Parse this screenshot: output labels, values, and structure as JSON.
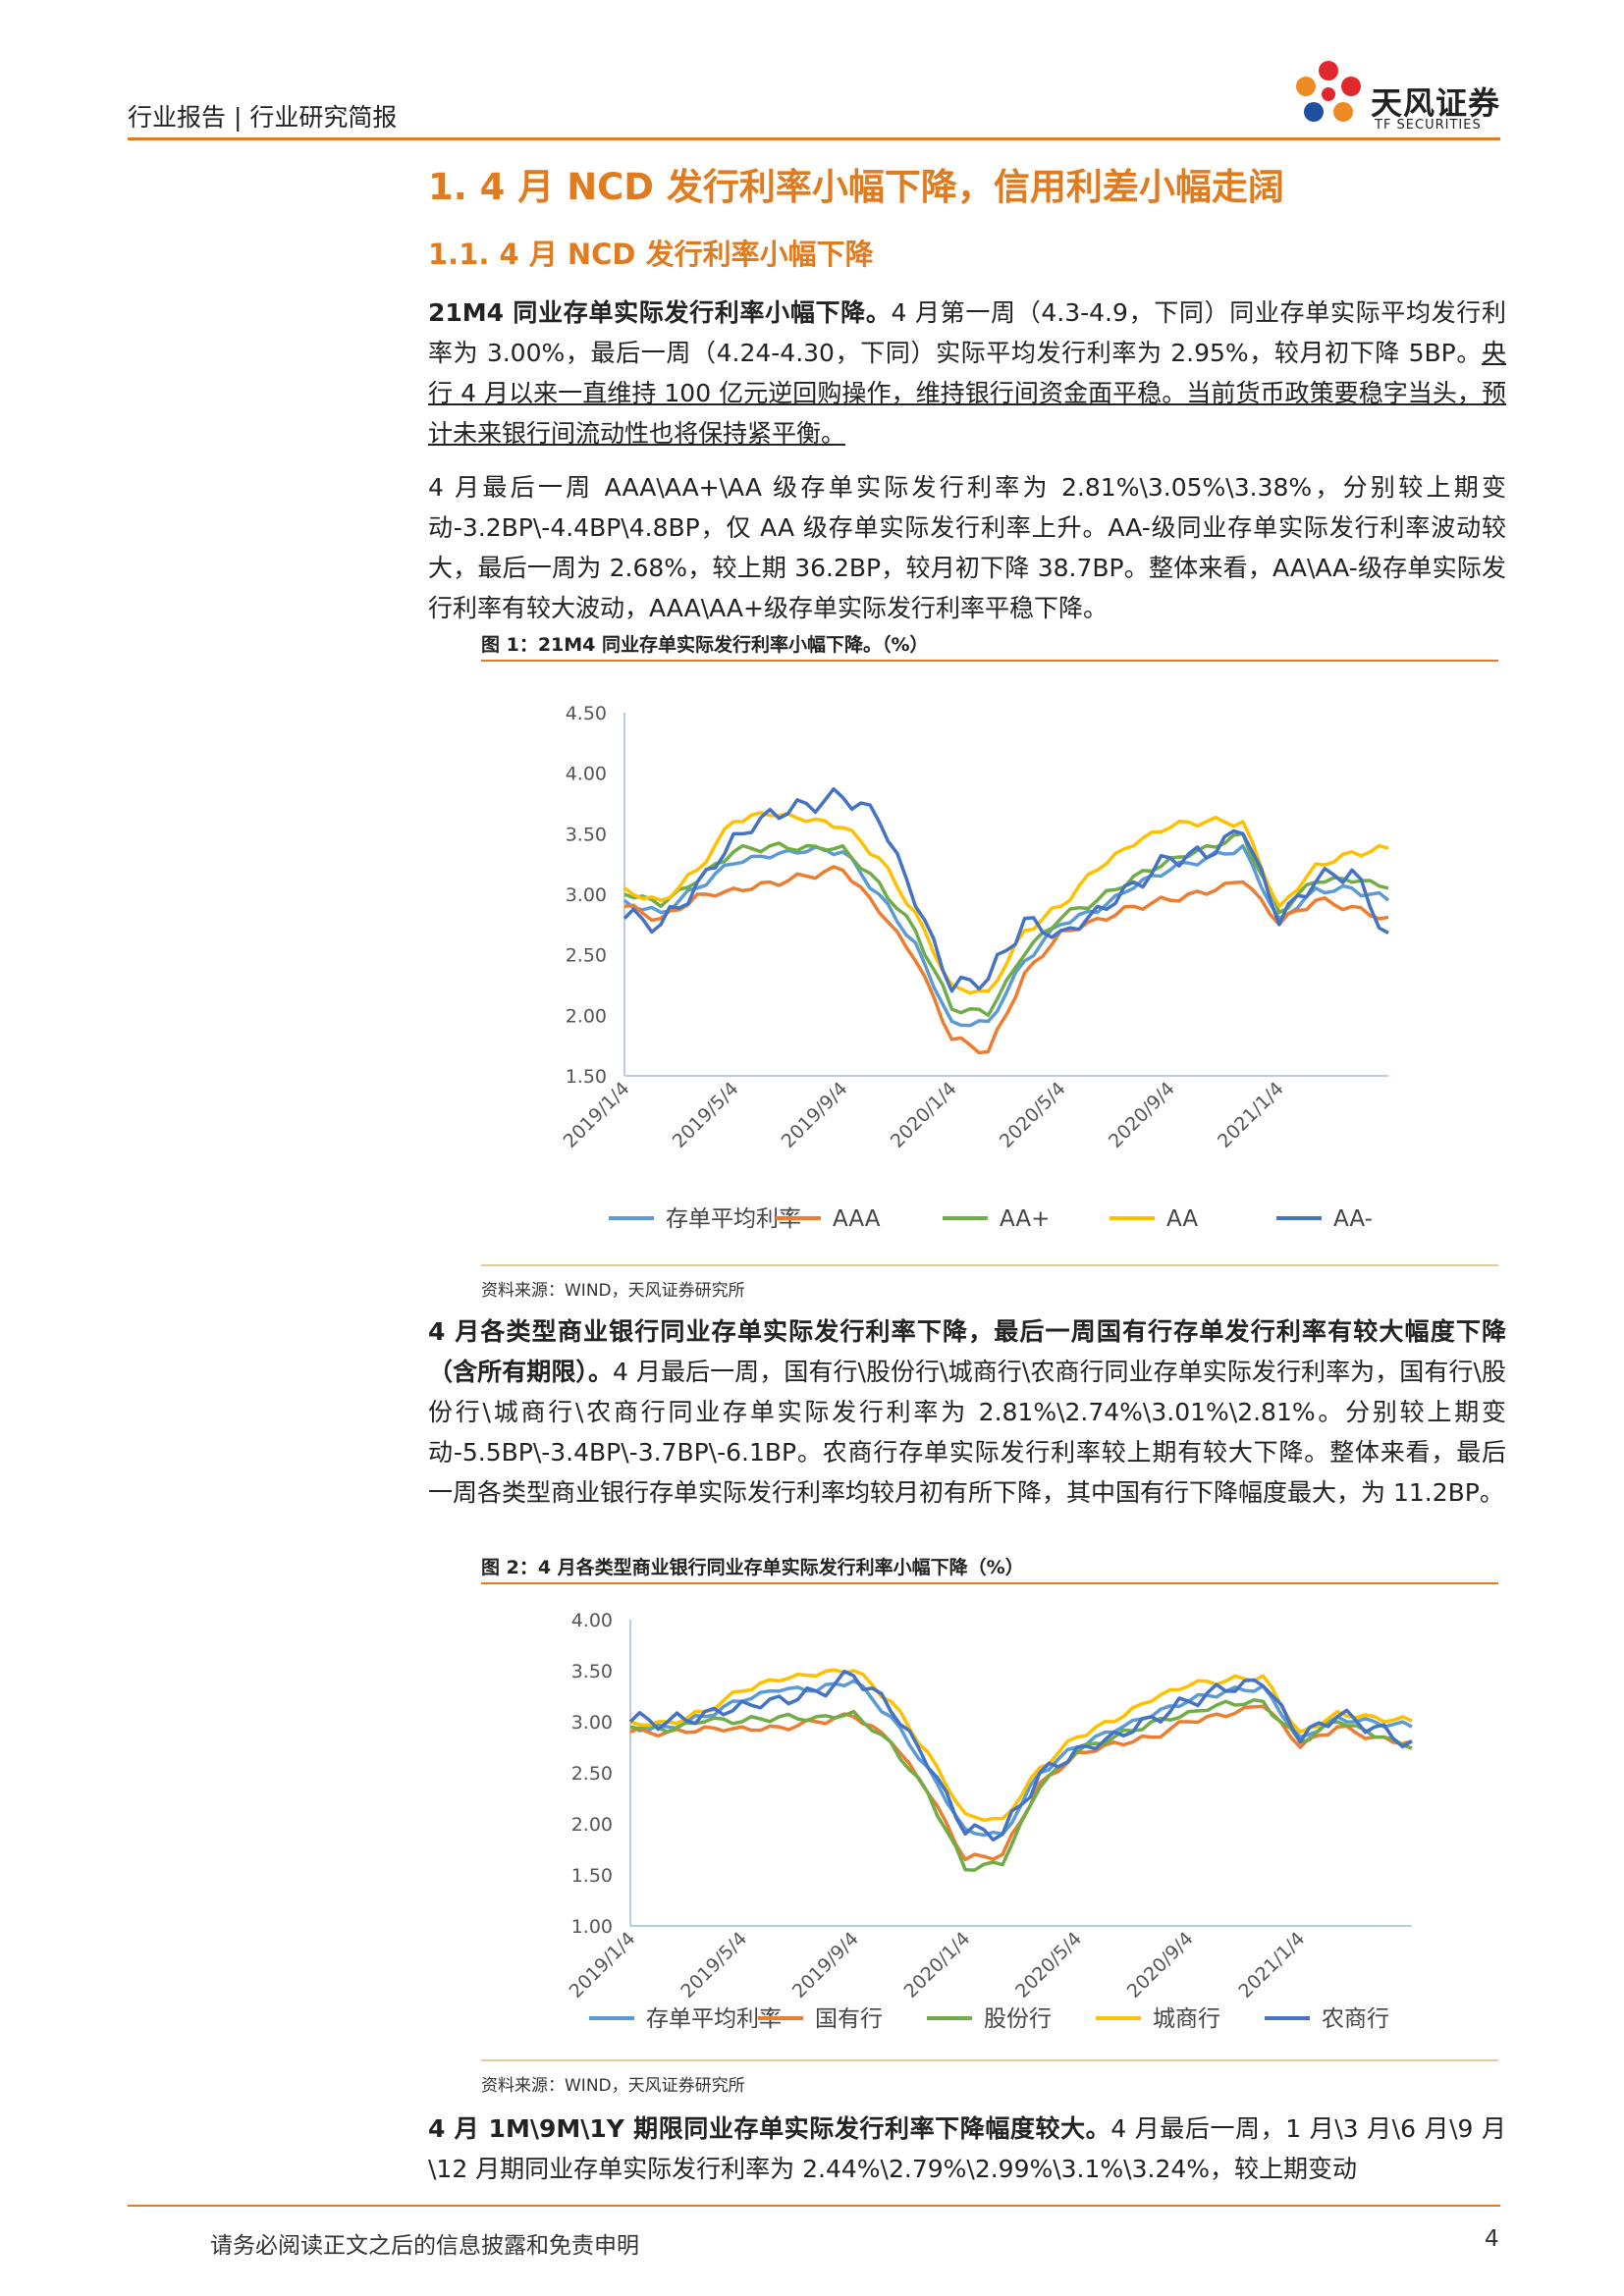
{
  "header": {
    "text": "行业报告 | 行业研究简报"
  },
  "logo": {
    "name": "天风证券",
    "sub": "TF SECURITIES",
    "colors": [
      "#e0282e",
      "#f08a24",
      "#1e4fa0"
    ]
  },
  "headings": {
    "h1": "1. 4 月 NCD 发行利率小幅下降，信用利差小幅走阔",
    "h2": "1.1. 4 月 NCD 发行利率小幅下降"
  },
  "p1": {
    "bold": "21M4 同业存单实际发行利率小幅下降。",
    "text": "4 月第一周（4.3-4.9，下同）同业存单实际平均发行利率为 3.00%，最后一周（4.24-4.30，下同）实际平均发行利率为 2.95%，较月初下降 5BP。",
    "underline": "央行 4 月以来一直维持 100 亿元逆回购操作，维持银行间资金面平稳。当前货币政策要稳字当头，预计未来银行间流动性也将保持紧平衡。"
  },
  "p2": {
    "text": "4 月最后一周 AAA\\AA+\\AA 级存单实际发行利率为 2.81%\\3.05%\\3.38%，分别较上期变动-3.2BP\\-4.4BP\\4.8BP，仅 AA 级存单实际发行利率上升。AA-级同业存单实际发行利率波动较大，最后一周为 2.68%，较上期 36.2BP，较月初下降 38.7BP。整体来看，AA\\AA-级存单实际发行利率有较大波动，AAA\\AA+级存单实际发行利率平稳下降。"
  },
  "fig1": {
    "title": "图 1：21M4 同业存单实际发行利率小幅下降。（%）",
    "source": "资料来源：WIND，天风证券研究所"
  },
  "p3": {
    "bold": "4 月各类型商业银行同业存单实际发行利率下降，最后一周国有行存单发行利率有较大幅度下降（含所有期限）。",
    "text": "4 月最后一周，国有行\\股份行\\城商行\\农商行同业存单实际发行利率为，国有行\\股份行\\城商行\\农商行同业存单实际发行利率为 2.81%\\2.74%\\3.01%\\2.81%。分别较上期变动-5.5BP\\-3.4BP\\-3.7BP\\-6.1BP。农商行存单实际发行利率较上期有较大下降。整体来看，最后一周各类型商业银行存单实际发行利率均较月初有所下降，其中国有行下降幅度最大，为 11.2BP。"
  },
  "fig2": {
    "title": "图 2：4 月各类型商业银行同业存单实际发行利率小幅下降（%）",
    "source": "资料来源：WIND，天风证券研究所"
  },
  "p4": {
    "bold": "4 月 1M\\9M\\1Y 期限同业存单实际发行利率下降幅度较大。",
    "text": "4 月最后一周，1 月\\3 月\\6 月\\9 月\\12 月期同业存单实际发行利率为 2.44%\\2.79%\\2.99%\\3.1%\\3.24%，较上期变动"
  },
  "footer": {
    "text": "请务必阅读正文之后的信息披露和免责申明",
    "page": "4"
  },
  "chart_data": [
    {
      "type": "line",
      "ylim": [
        1.5,
        4.5
      ],
      "yticks": [
        "4.50",
        "4.00",
        "3.50",
        "3.00",
        "2.50",
        "2.00",
        "1.50"
      ],
      "xticks": [
        "2019/1/4",
        "2019/5/4",
        "2019/9/4",
        "2020/1/4",
        "2020/5/4",
        "2020/9/4",
        "2021/1/4"
      ],
      "x": [
        "2019-01",
        "2019-03",
        "2019-05",
        "2019-07",
        "2019-09",
        "2019-11",
        "2020-01",
        "2020-02",
        "2020-03",
        "2020-04",
        "2020-05",
        "2020-06",
        "2020-07",
        "2020-08",
        "2020-09",
        "2020-10",
        "2020-11",
        "2020-12",
        "2021-01",
        "2021-02",
        "2021-03",
        "2021-04"
      ],
      "series": [
        {
          "name": "存单平均利率",
          "color": "#5b9bd5",
          "values": [
            2.95,
            2.85,
            3.05,
            3.25,
            3.3,
            3.35,
            3.35,
            3.0,
            2.6,
            1.95,
            1.95,
            2.45,
            2.75,
            2.85,
            3.05,
            3.2,
            3.3,
            3.4,
            2.8,
            3.05,
            3.05,
            2.95
          ]
        },
        {
          "name": "AAA",
          "color": "#ed7d31",
          "values": [
            2.9,
            2.8,
            3.0,
            3.05,
            3.1,
            3.15,
            3.2,
            2.85,
            2.45,
            1.8,
            1.7,
            2.35,
            2.7,
            2.8,
            2.9,
            2.95,
            3.0,
            3.1,
            2.75,
            2.95,
            2.9,
            2.81
          ]
        },
        {
          "name": "AA+",
          "color": "#70ad47",
          "values": [
            3.0,
            2.9,
            3.1,
            3.35,
            3.4,
            3.4,
            3.4,
            3.1,
            2.7,
            2.05,
            2.0,
            2.5,
            2.8,
            2.95,
            3.15,
            3.3,
            3.4,
            3.5,
            2.85,
            3.1,
            3.1,
            3.05
          ]
        },
        {
          "name": "AA",
          "color": "#ffc000",
          "values": [
            3.05,
            2.95,
            3.2,
            3.6,
            3.65,
            3.6,
            3.55,
            3.3,
            2.85,
            2.25,
            2.2,
            2.7,
            2.9,
            3.2,
            3.4,
            3.55,
            3.6,
            3.6,
            2.9,
            3.25,
            3.35,
            3.38
          ]
        },
        {
          "name": "AA-",
          "color": "#4472c4",
          "values": [
            2.8,
            2.75,
            3.1,
            3.5,
            3.7,
            3.75,
            3.8,
            3.6,
            2.9,
            2.2,
            2.3,
            2.8,
            2.7,
            2.9,
            3.1,
            3.3,
            3.3,
            3.5,
            2.75,
            3.1,
            3.2,
            2.68
          ]
        }
      ]
    },
    {
      "type": "line",
      "ylim": [
        1.0,
        4.0
      ],
      "yticks": [
        "4.00",
        "3.50",
        "3.00",
        "2.50",
        "2.00",
        "1.50",
        "1.00"
      ],
      "xticks": [
        "2019/1/4",
        "2019/5/4",
        "2019/9/4",
        "2020/1/4",
        "2020/5/4",
        "2020/9/4",
        "2021/1/4"
      ],
      "x": [
        "2019-01",
        "2019-03",
        "2019-05",
        "2019-07",
        "2019-09",
        "2019-11",
        "2020-01",
        "2020-02",
        "2020-03",
        "2020-04",
        "2020-05",
        "2020-06",
        "2020-07",
        "2020-08",
        "2020-09",
        "2020-10",
        "2020-11",
        "2020-12",
        "2021-01",
        "2021-02",
        "2021-03",
        "2021-04"
      ],
      "series": [
        {
          "name": "存单平均利率",
          "color": "#5b9bd5",
          "values": [
            2.95,
            2.95,
            3.05,
            3.2,
            3.3,
            3.3,
            3.4,
            3.05,
            2.55,
            1.95,
            1.9,
            2.5,
            2.75,
            2.9,
            3.05,
            3.2,
            3.3,
            3.35,
            2.85,
            3.05,
            3.0,
            2.95
          ]
        },
        {
          "name": "国有行",
          "color": "#ed7d31",
          "values": [
            2.9,
            2.9,
            2.95,
            2.95,
            2.95,
            3.0,
            3.05,
            2.8,
            2.3,
            1.65,
            1.7,
            2.4,
            2.7,
            2.8,
            2.85,
            3.0,
            3.05,
            3.15,
            2.75,
            2.95,
            2.85,
            2.81
          ]
        },
        {
          "name": "股份行",
          "color": "#70ad47",
          "values": [
            2.95,
            2.9,
            3.0,
            3.0,
            3.05,
            3.05,
            3.1,
            2.8,
            2.3,
            1.55,
            1.6,
            2.35,
            2.7,
            2.85,
            3.0,
            3.1,
            3.2,
            3.2,
            2.8,
            3.0,
            2.85,
            2.74
          ]
        },
        {
          "name": "城商行",
          "color": "#ffc000",
          "values": [
            3.0,
            3.0,
            3.1,
            3.3,
            3.4,
            3.45,
            3.5,
            3.2,
            2.7,
            2.1,
            2.05,
            2.55,
            2.85,
            3.0,
            3.2,
            3.35,
            3.4,
            3.45,
            2.9,
            3.1,
            3.05,
            3.01
          ]
        },
        {
          "name": "农商行",
          "color": "#4472c4",
          "values": [
            3.0,
            3.0,
            3.1,
            3.2,
            3.25,
            3.3,
            3.45,
            3.1,
            2.55,
            1.9,
            1.9,
            2.5,
            2.75,
            2.9,
            3.05,
            3.2,
            3.3,
            3.35,
            2.8,
            3.05,
            2.95,
            2.81
          ]
        }
      ]
    }
  ]
}
